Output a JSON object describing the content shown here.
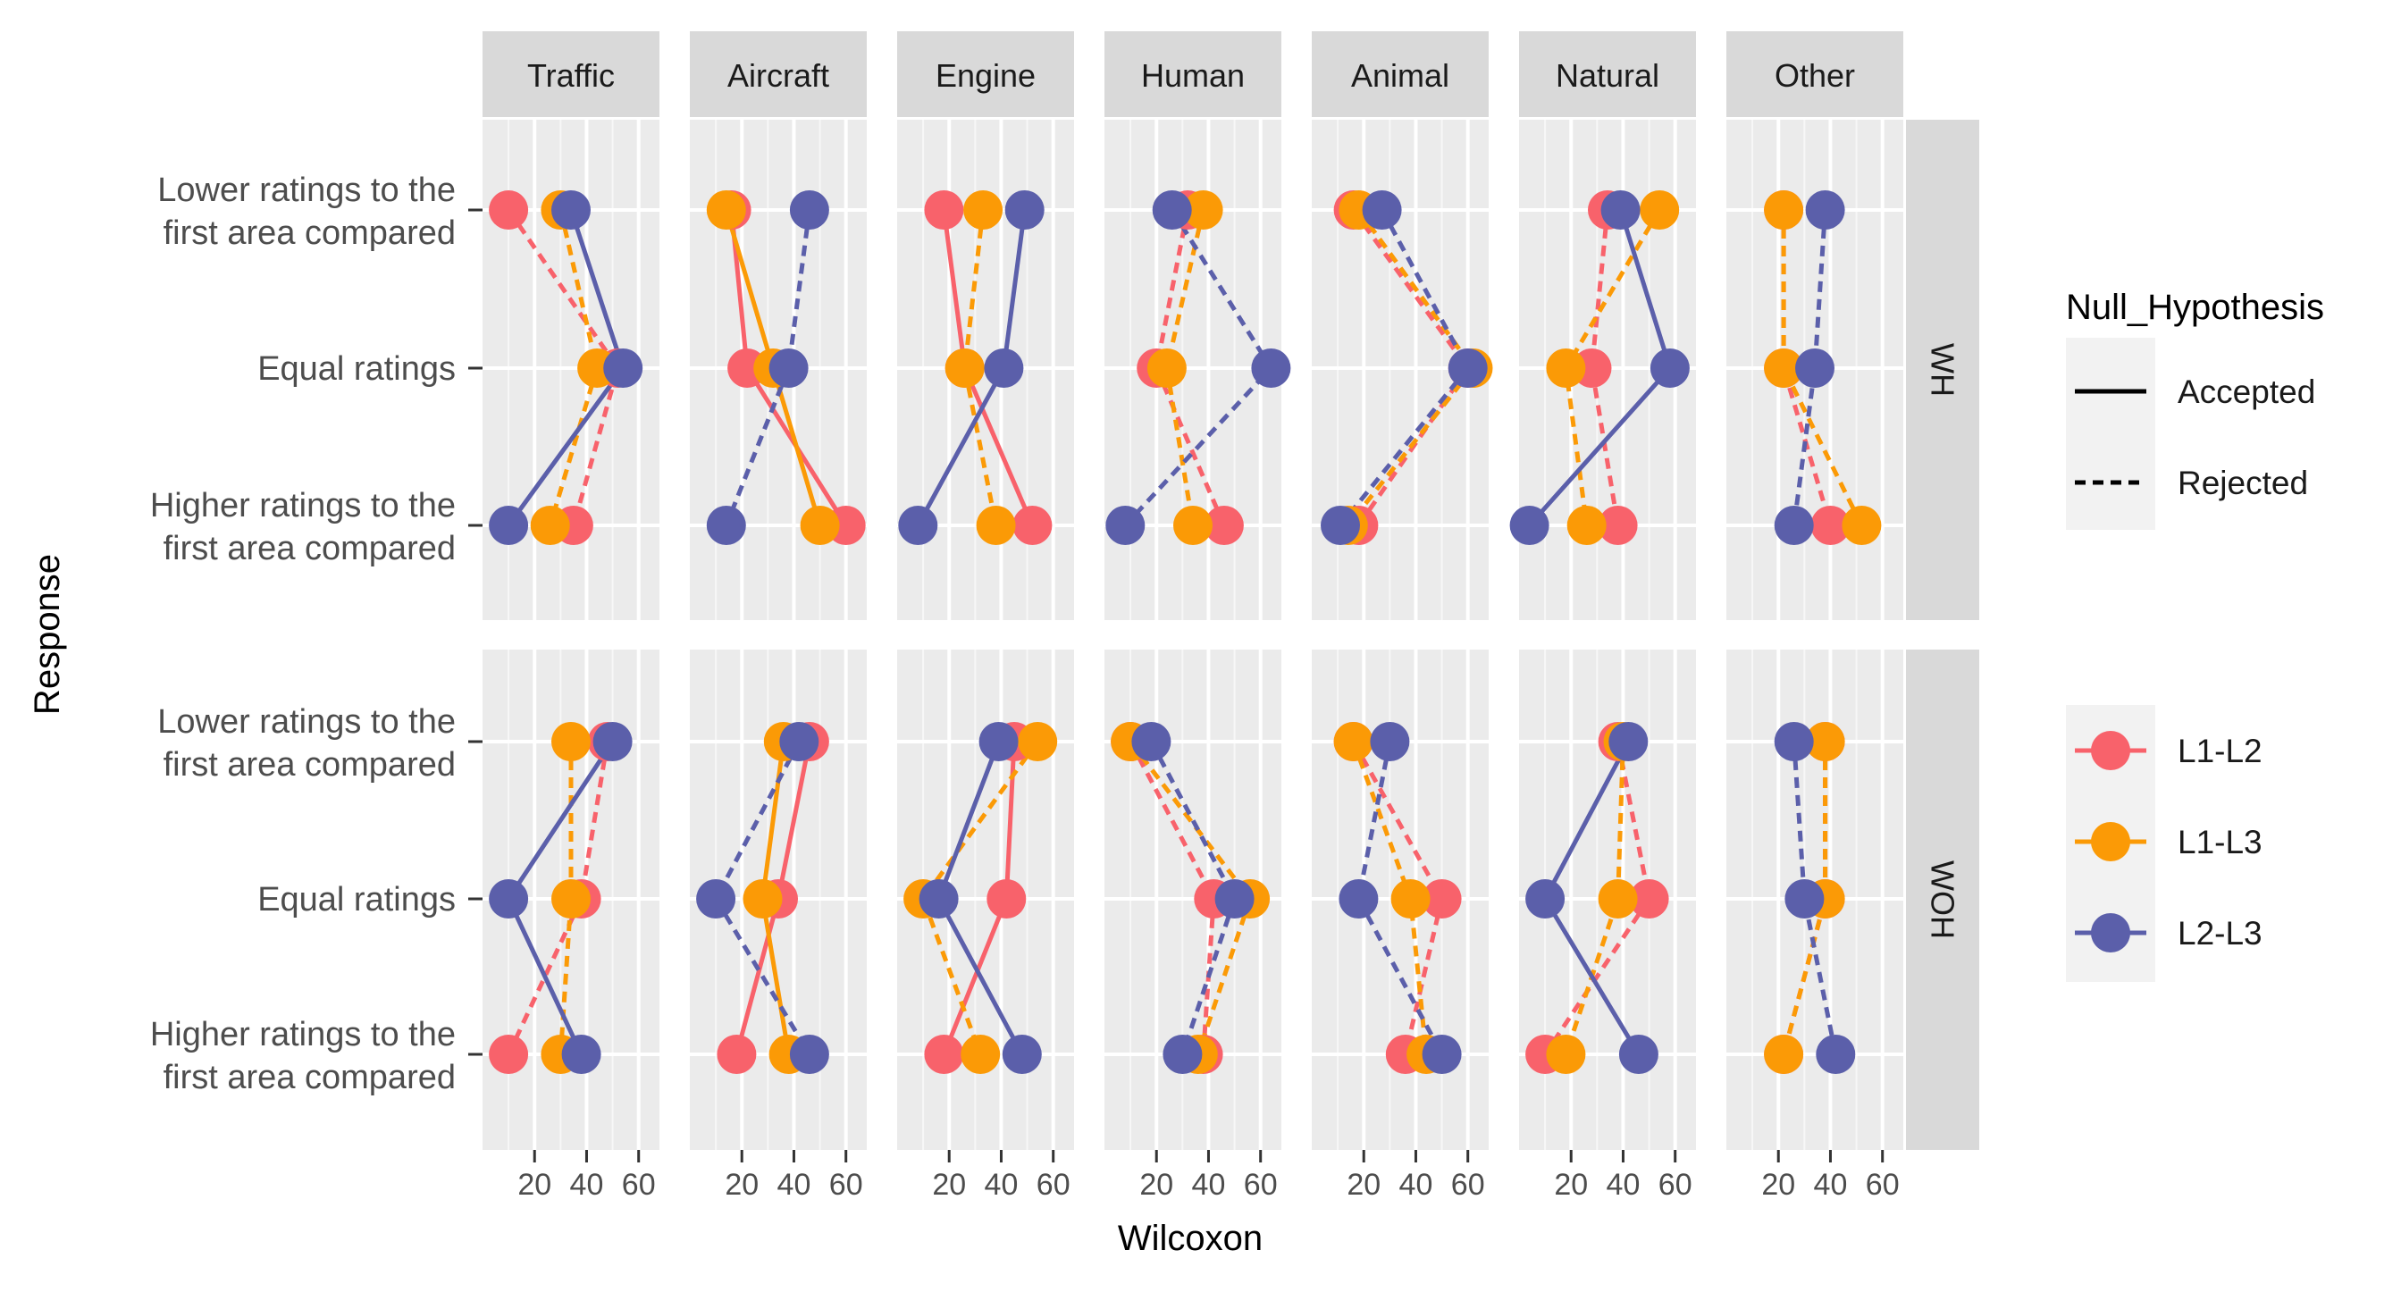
{
  "chart_data": {
    "type": "line",
    "xlabel": "Wilcoxon",
    "ylabel": "Response",
    "xlim": [
      0,
      68
    ],
    "xticks": [
      20,
      40,
      60
    ],
    "xtick_labels": [
      "20",
      "40",
      "60"
    ],
    "categories": [
      {
        "key": "lower",
        "lines": [
          "Lower ratings to the",
          "first area compared"
        ]
      },
      {
        "key": "equal",
        "lines": [
          "Equal ratings"
        ]
      },
      {
        "key": "higher",
        "lines": [
          "Higher ratings to the",
          "first area compared"
        ]
      }
    ],
    "columns": [
      "Traffic",
      "Aircraft",
      "Engine",
      "Human",
      "Animal",
      "Natural",
      "Other"
    ],
    "rows": [
      "WH",
      "WOH"
    ],
    "series_colors": {
      "L1-L2": "#f8626b",
      "L1-L3": "#fb9a06",
      "L2-L3": "#5b5faa"
    },
    "legend": {
      "line_title": "Null_Hypothesis",
      "line_types": [
        {
          "label": "Accepted",
          "dash": "solid"
        },
        {
          "label": "Rejected",
          "dash": "dashed"
        }
      ],
      "series": [
        "L1-L2",
        "L1-L3",
        "L2-L3"
      ]
    },
    "panels": {
      "WH": {
        "Traffic": {
          "L1-L2": {
            "values": [
              10,
              52,
              35
            ],
            "hypothesis": "Rejected"
          },
          "L1-L3": {
            "values": [
              30,
              44,
              26
            ],
            "hypothesis": "Rejected"
          },
          "L2-L3": {
            "values": [
              34,
              54,
              10
            ],
            "hypothesis": "Accepted"
          }
        },
        "Aircraft": {
          "L1-L2": {
            "values": [
              16,
              22,
              60
            ],
            "hypothesis": "Accepted"
          },
          "L1-L3": {
            "values": [
              14,
              32,
              50
            ],
            "hypothesis": "Accepted"
          },
          "L2-L3": {
            "values": [
              46,
              38,
              14
            ],
            "hypothesis": "Rejected"
          }
        },
        "Engine": {
          "L1-L2": {
            "values": [
              18,
              26,
              52
            ],
            "hypothesis": "Accepted"
          },
          "L1-L3": {
            "values": [
              33,
              26,
              38
            ],
            "hypothesis": "Rejected"
          },
          "L2-L3": {
            "values": [
              49,
              41,
              8
            ],
            "hypothesis": "Accepted"
          }
        },
        "Human": {
          "L1-L2": {
            "values": [
              32,
              20,
              46
            ],
            "hypothesis": "Rejected"
          },
          "L1-L3": {
            "values": [
              38,
              24,
              34
            ],
            "hypothesis": "Rejected"
          },
          "L2-L3": {
            "values": [
              26,
              64,
              8
            ],
            "hypothesis": "Rejected"
          }
        },
        "Animal": {
          "L1-L2": {
            "values": [
              16,
              60,
              18
            ],
            "hypothesis": "Rejected"
          },
          "L1-L3": {
            "values": [
              18,
              62,
              14
            ],
            "hypothesis": "Rejected"
          },
          "L2-L3": {
            "values": [
              27,
              60,
              11
            ],
            "hypothesis": "Rejected"
          }
        },
        "Natural": {
          "L1-L2": {
            "values": [
              34,
              28,
              38
            ],
            "hypothesis": "Rejected"
          },
          "L1-L3": {
            "values": [
              54,
              18,
              26
            ],
            "hypothesis": "Rejected"
          },
          "L2-L3": {
            "values": [
              39,
              58,
              4
            ],
            "hypothesis": "Accepted"
          }
        },
        "Other": {
          "L1-L2": {
            "values": [
              22,
              22,
              40
            ],
            "hypothesis": "Rejected"
          },
          "L1-L3": {
            "values": [
              22,
              22,
              52
            ],
            "hypothesis": "Rejected"
          },
          "L2-L3": {
            "values": [
              38,
              34,
              26
            ],
            "hypothesis": "Rejected"
          }
        }
      },
      "WOH": {
        "Traffic": {
          "L1-L2": {
            "values": [
              48,
              38,
              10
            ],
            "hypothesis": "Rejected"
          },
          "L1-L3": {
            "values": [
              34,
              34,
              30
            ],
            "hypothesis": "Rejected"
          },
          "L2-L3": {
            "values": [
              50,
              10,
              38
            ],
            "hypothesis": "Accepted"
          }
        },
        "Aircraft": {
          "L1-L2": {
            "values": [
              46,
              34,
              18
            ],
            "hypothesis": "Accepted"
          },
          "L1-L3": {
            "values": [
              36,
              28,
              38
            ],
            "hypothesis": "Accepted"
          },
          "L2-L3": {
            "values": [
              42,
              10,
              46
            ],
            "hypothesis": "Rejected"
          }
        },
        "Engine": {
          "L1-L2": {
            "values": [
              45,
              42,
              18
            ],
            "hypothesis": "Accepted"
          },
          "L1-L3": {
            "values": [
              54,
              10,
              32
            ],
            "hypothesis": "Rejected"
          },
          "L2-L3": {
            "values": [
              39,
              16,
              48
            ],
            "hypothesis": "Accepted"
          }
        },
        "Human": {
          "L1-L2": {
            "values": [
              10,
              42,
              38
            ],
            "hypothesis": "Rejected"
          },
          "L1-L3": {
            "values": [
              10,
              56,
              36
            ],
            "hypothesis": "Rejected"
          },
          "L2-L3": {
            "values": [
              18,
              50,
              30
            ],
            "hypothesis": "Rejected"
          }
        },
        "Animal": {
          "L1-L2": {
            "values": [
              16,
              50,
              36
            ],
            "hypothesis": "Rejected"
          },
          "L1-L3": {
            "values": [
              16,
              38,
              44
            ],
            "hypothesis": "Rejected"
          },
          "L2-L3": {
            "values": [
              30,
              18,
              50
            ],
            "hypothesis": "Rejected"
          }
        },
        "Natural": {
          "L1-L2": {
            "values": [
              38,
              50,
              10
            ],
            "hypothesis": "Rejected"
          },
          "L1-L3": {
            "values": [
              40,
              38,
              18
            ],
            "hypothesis": "Rejected"
          },
          "L2-L3": {
            "values": [
              42,
              10,
              46
            ],
            "hypothesis": "Accepted"
          }
        },
        "Other": {
          "L1-L2": {
            "values": [
              38,
              38,
              22
            ],
            "hypothesis": "Rejected"
          },
          "L1-L3": {
            "values": [
              38,
              38,
              22
            ],
            "hypothesis": "Rejected"
          },
          "L2-L3": {
            "values": [
              26,
              30,
              42
            ],
            "hypothesis": "Rejected"
          }
        }
      }
    }
  }
}
